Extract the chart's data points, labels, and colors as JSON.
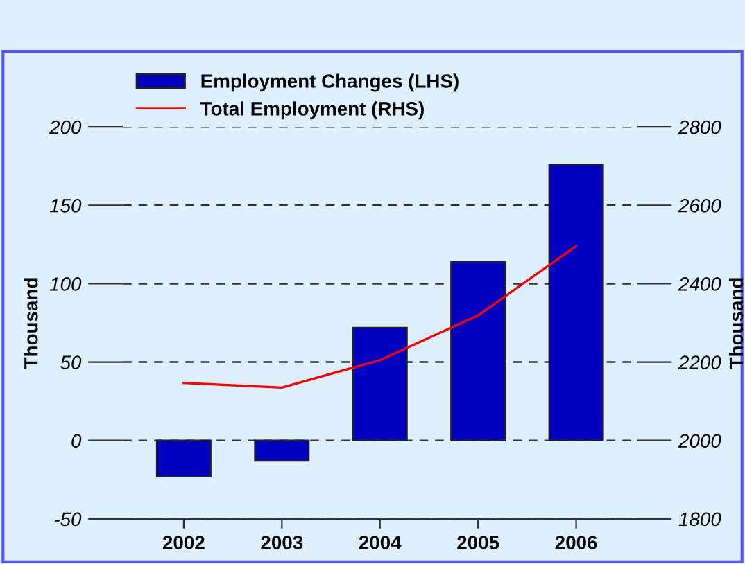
{
  "chart_data": {
    "type": "bar",
    "categories": [
      "2002",
      "2003",
      "2004",
      "2005",
      "2006"
    ],
    "series": [
      {
        "name": "Employment Changes (LHS)",
        "color": "#0000c0",
        "values": [
          -23,
          -13,
          72,
          114,
          176
        ]
      },
      {
        "name": "Total Employment (RHS)",
        "type": "line",
        "axis": "y2",
        "color": "#ff0000",
        "values": [
          2147,
          2135,
          2205,
          2319,
          2496
        ]
      }
    ],
    "ylabel": "Thousand",
    "y2label": "Thousand",
    "ylim": [
      -50,
      200
    ],
    "yticks": [
      -50,
      0,
      50,
      100,
      150,
      200
    ],
    "y2lim": [
      1800,
      2800
    ],
    "y2ticks": [
      1800,
      2000,
      2200,
      2400,
      2600,
      2800
    ],
    "grid": "y",
    "legend": "top",
    "line_style": "solid"
  }
}
